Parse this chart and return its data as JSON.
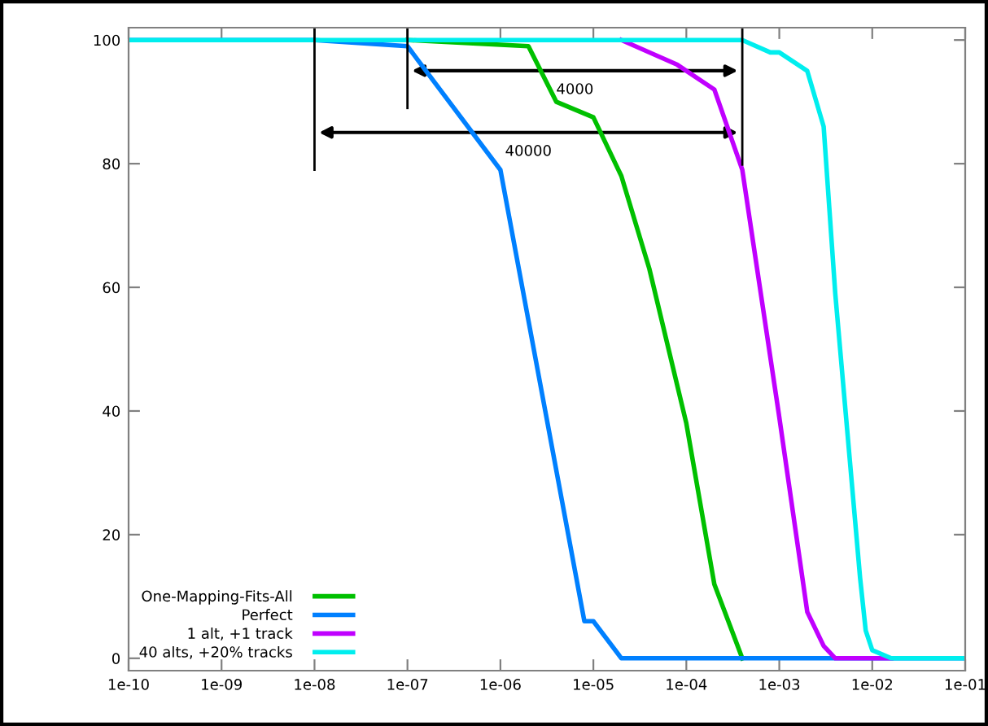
{
  "chart_data": {
    "type": "line",
    "log": "x",
    "grid": false,
    "legend": "bottom left",
    "marker": "none",
    "line_style": "solid",
    "xlim": [
      1e-10,
      0.1
    ],
    "ylim": [
      -2,
      102
    ],
    "xticks": [
      {
        "value": 1e-10,
        "label": "1e-10"
      },
      {
        "value": 1e-09,
        "label": "1e-09"
      },
      {
        "value": 1e-08,
        "label": "1e-08"
      },
      {
        "value": 1e-07,
        "label": "1e-07"
      },
      {
        "value": 1e-06,
        "label": "1e-06"
      },
      {
        "value": 1e-05,
        "label": "1e-05"
      },
      {
        "value": 0.0001,
        "label": "1e-04"
      },
      {
        "value": 0.001,
        "label": "1e-03"
      },
      {
        "value": 0.01,
        "label": "1e-02"
      },
      {
        "value": 0.1,
        "label": "1e-01"
      }
    ],
    "yticks": [
      0,
      20,
      40,
      60,
      80,
      100
    ],
    "series": [
      {
        "name": "One-Mapping-Fits-All",
        "color": "#00c000",
        "x": [
          1e-07,
          2e-06,
          4e-06,
          1e-05,
          2e-05,
          4e-05,
          0.0001,
          0.0002,
          0.0004
        ],
        "values": [
          100,
          99,
          90,
          87.5,
          78,
          63,
          38,
          12,
          0
        ]
      },
      {
        "name": "Perfect",
        "color": "#0080ff",
        "x": [
          1e-10,
          1e-08,
          1e-07,
          1e-06,
          8e-06,
          1e-05,
          2e-05,
          0.1
        ],
        "values": [
          100,
          100,
          99,
          79,
          6,
          6,
          0,
          0
        ]
      },
      {
        "name": "1 alt, +1 track",
        "color": "#c000ff",
        "x": [
          2e-05,
          8e-05,
          0.0002,
          0.0004,
          0.001,
          0.002,
          0.003,
          0.004,
          0.016
        ],
        "values": [
          100,
          96,
          92,
          79,
          39,
          7.5,
          2,
          0,
          0
        ]
      },
      {
        "name": "40 alts, +20% tracks",
        "color": "#00eeee",
        "x": [
          1e-10,
          0.0004,
          0.0008,
          0.001,
          0.002,
          0.003,
          0.004,
          0.0074,
          0.0085,
          0.01,
          0.016,
          0.1
        ],
        "values": [
          100,
          100,
          98,
          98,
          95,
          86,
          59,
          13,
          4.5,
          1.3,
          0,
          0
        ]
      }
    ],
    "ref_lines": [
      {
        "axis": "x",
        "value": 0.0004,
        "color": "#000000"
      },
      {
        "axis": "x",
        "value": 1e-07,
        "color": "#000000"
      },
      {
        "axis": "x",
        "value": 1e-08,
        "color": "#000000"
      }
    ],
    "annotations": [
      "4000",
      "40000"
    ]
  }
}
